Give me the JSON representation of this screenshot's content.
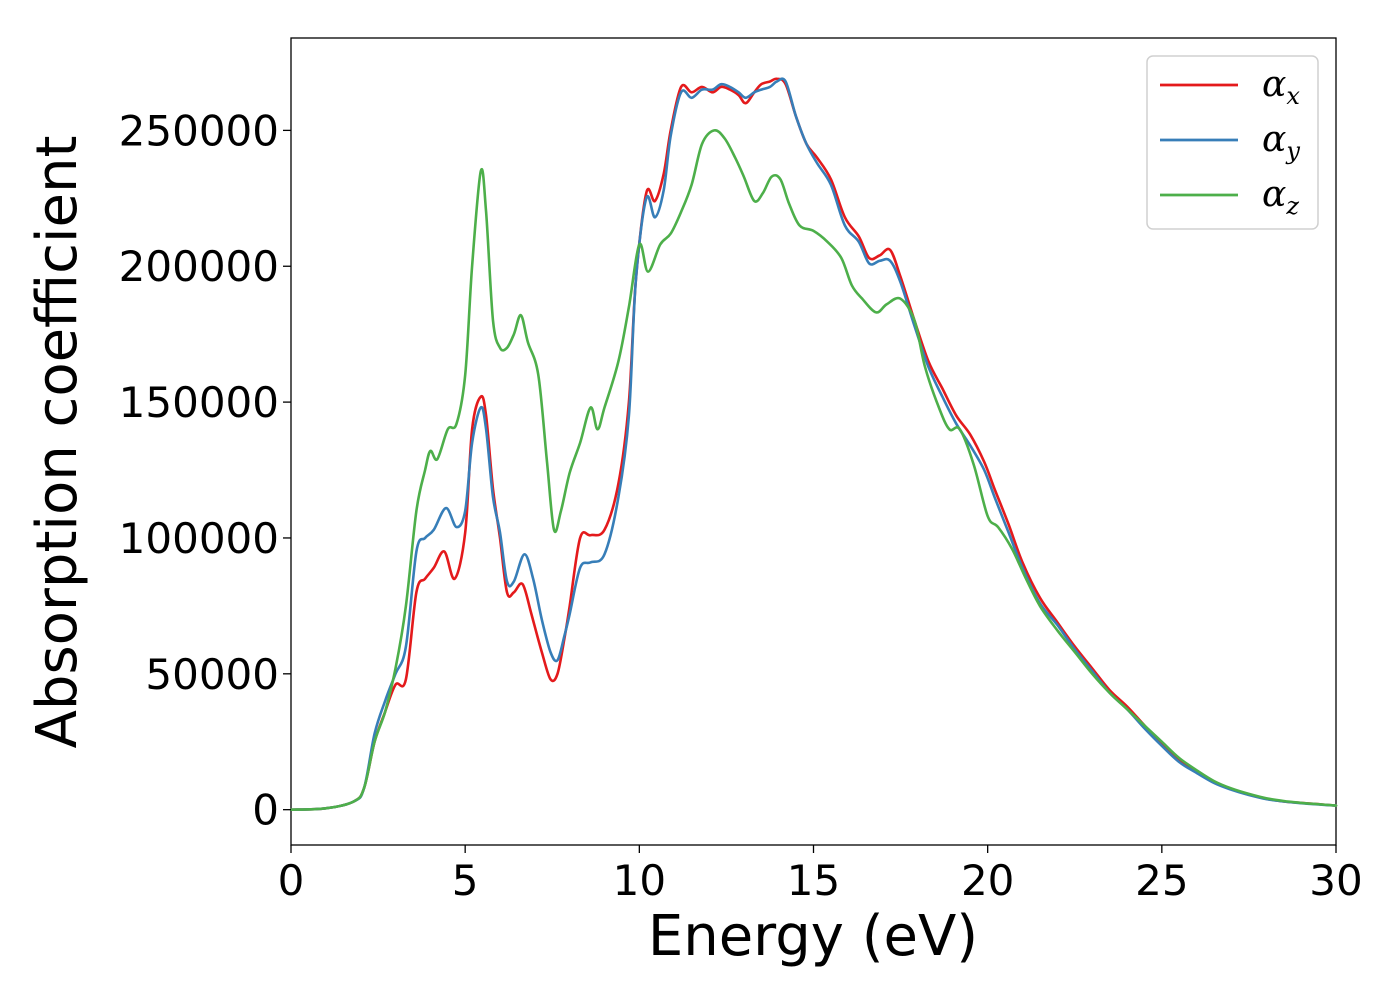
{
  "chart_data": {
    "type": "line",
    "xlabel": "Energy (eV)",
    "ylabel": "Absorption coefficient",
    "xlim": [
      0,
      30
    ],
    "ylim": [
      -13000,
      284000
    ],
    "xticks": [
      0,
      5,
      10,
      15,
      20,
      25,
      30
    ],
    "yticks": [
      0,
      50000,
      100000,
      150000,
      200000,
      250000
    ],
    "grid": false,
    "legend_position": "top-right",
    "series": [
      {
        "name": "α",
        "subscript": "x",
        "color": "#e41a1c",
        "x": [
          0,
          1,
          1.8,
          2.1,
          2.4,
          2.7,
          3.0,
          3.3,
          3.6,
          3.85,
          4.1,
          4.4,
          4.7,
          5.0,
          5.2,
          5.45,
          5.6,
          5.8,
          6.0,
          6.2,
          6.4,
          6.65,
          6.9,
          7.2,
          7.45,
          7.65,
          7.85,
          8.0,
          8.3,
          8.6,
          9.0,
          9.4,
          9.7,
          9.9,
          10.2,
          10.45,
          10.7,
          10.9,
          11.2,
          11.5,
          11.8,
          12.1,
          12.35,
          12.6,
          12.85,
          13.05,
          13.3,
          13.5,
          13.75,
          13.95,
          14.2,
          14.5,
          14.8,
          15.1,
          15.5,
          15.9,
          16.3,
          16.6,
          16.9,
          17.2,
          17.5,
          17.9,
          18.3,
          18.7,
          19.1,
          19.5,
          19.9,
          20.2,
          20.6,
          21.0,
          21.5,
          22.0,
          22.5,
          23.0,
          23.5,
          24.0,
          24.5,
          25.0,
          25.5,
          26.0,
          26.5,
          27.0,
          27.5,
          28.0,
          28.5,
          29.0,
          29.5,
          30.0
        ],
        "y": [
          0,
          500,
          3000,
          8000,
          25000,
          36000,
          46000,
          48000,
          80000,
          85000,
          89000,
          95000,
          85000,
          102000,
          140000,
          152000,
          145000,
          118000,
          100000,
          80000,
          80000,
          83000,
          72000,
          58000,
          48000,
          50000,
          63000,
          75000,
          100000,
          101000,
          103000,
          120000,
          150000,
          195000,
          227000,
          224000,
          234000,
          250000,
          266000,
          264000,
          266000,
          264000,
          266000,
          265000,
          263000,
          260000,
          264000,
          267000,
          268000,
          269000,
          267000,
          255000,
          245000,
          240000,
          232000,
          218000,
          211000,
          203000,
          204000,
          206000,
          196000,
          180000,
          165000,
          155000,
          145000,
          138000,
          128000,
          118000,
          105000,
          91000,
          78000,
          69000,
          60000,
          52000,
          44000,
          38000,
          31000,
          24000,
          18000,
          14000,
          10000,
          7500,
          5500,
          4000,
          3000,
          2500,
          2000,
          1500
        ]
      },
      {
        "name": "α",
        "subscript": "y",
        "color": "#377eb8",
        "x": [
          0,
          1,
          1.8,
          2.1,
          2.4,
          2.7,
          3.0,
          3.3,
          3.6,
          3.85,
          4.1,
          4.45,
          4.75,
          5.0,
          5.2,
          5.45,
          5.6,
          5.8,
          6.0,
          6.2,
          6.4,
          6.7,
          6.95,
          7.2,
          7.45,
          7.65,
          7.85,
          8.0,
          8.3,
          8.6,
          9.0,
          9.4,
          9.7,
          9.9,
          10.2,
          10.45,
          10.7,
          10.9,
          11.2,
          11.5,
          11.8,
          12.1,
          12.35,
          12.6,
          12.85,
          13.05,
          13.3,
          13.5,
          13.75,
          13.95,
          14.2,
          14.5,
          14.8,
          15.1,
          15.5,
          15.9,
          16.3,
          16.6,
          16.9,
          17.2,
          17.5,
          17.9,
          18.3,
          18.7,
          19.1,
          19.5,
          19.9,
          20.2,
          20.6,
          21.0,
          21.5,
          22.0,
          22.5,
          23.0,
          23.5,
          24.0,
          24.5,
          25.0,
          25.5,
          26.0,
          26.5,
          27.0,
          27.5,
          28.0,
          28.5,
          29.0,
          29.5,
          30.0
        ],
        "y": [
          0,
          500,
          3000,
          8000,
          28000,
          40000,
          50000,
          60000,
          95000,
          100000,
          103000,
          111000,
          104000,
          110000,
          135000,
          148000,
          140000,
          115000,
          102000,
          84000,
          84000,
          94000,
          85000,
          70000,
          58000,
          55000,
          64000,
          72000,
          89000,
          91000,
          94000,
          115000,
          145000,
          195000,
          225000,
          218000,
          228000,
          248000,
          264000,
          262000,
          265000,
          265000,
          267000,
          266000,
          264000,
          262000,
          264000,
          265000,
          266000,
          268000,
          268000,
          255000,
          245000,
          238000,
          230000,
          215000,
          209000,
          201000,
          202000,
          202000,
          194000,
          178000,
          163000,
          152000,
          142000,
          134000,
          125000,
          115000,
          102000,
          89000,
          76000,
          68000,
          59000,
          51000,
          43000,
          37000,
          30000,
          23500,
          17500,
          13500,
          9800,
          7300,
          5400,
          3900,
          3000,
          2400,
          1900,
          1500
        ]
      },
      {
        "name": "α",
        "subscript": "z",
        "color": "#4daf4a",
        "x": [
          0,
          1,
          1.8,
          2.1,
          2.4,
          2.7,
          3.0,
          3.3,
          3.6,
          3.85,
          4.0,
          4.2,
          4.5,
          4.75,
          5.0,
          5.2,
          5.45,
          5.6,
          5.8,
          6.0,
          6.2,
          6.4,
          6.6,
          6.8,
          7.1,
          7.35,
          7.55,
          7.75,
          8.0,
          8.3,
          8.6,
          8.8,
          9.0,
          9.4,
          9.7,
          10.0,
          10.25,
          10.6,
          10.9,
          11.2,
          11.5,
          11.8,
          12.15,
          12.45,
          12.75,
          13.0,
          13.3,
          13.55,
          13.8,
          14.05,
          14.3,
          14.6,
          15.0,
          15.4,
          15.8,
          16.1,
          16.4,
          16.8,
          17.1,
          17.5,
          17.9,
          18.2,
          18.6,
          18.9,
          19.2,
          19.6,
          20.0,
          20.3,
          20.7,
          21.1,
          21.5,
          22.0,
          22.5,
          23.0,
          23.5,
          24.0,
          24.5,
          25.0,
          25.5,
          26.0,
          26.5,
          27.0,
          27.5,
          28.0,
          28.5,
          29.0,
          29.5,
          30.0
        ],
        "y": [
          0,
          500,
          3000,
          8000,
          25000,
          36000,
          52000,
          75000,
          110000,
          125000,
          132000,
          129000,
          140000,
          142000,
          160000,
          200000,
          235000,
          220000,
          180000,
          170000,
          170000,
          175000,
          182000,
          172000,
          160000,
          128000,
          103000,
          110000,
          124000,
          135000,
          148000,
          140000,
          148000,
          165000,
          185000,
          208000,
          198000,
          208000,
          212000,
          220000,
          230000,
          245000,
          250000,
          247000,
          240000,
          233000,
          224000,
          227000,
          233000,
          232000,
          223000,
          215000,
          213000,
          209000,
          203000,
          193000,
          188000,
          183000,
          186000,
          188000,
          180000,
          163000,
          148000,
          140000,
          140000,
          127000,
          108000,
          104000,
          96000,
          85000,
          75000,
          66000,
          58000,
          50000,
          43000,
          37000,
          31000,
          25000,
          19000,
          14500,
          10500,
          7800,
          5800,
          4200,
          3200,
          2500,
          2000,
          1500
        ]
      }
    ]
  }
}
